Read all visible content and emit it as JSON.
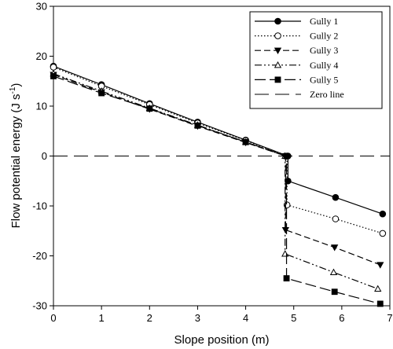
{
  "chart_data": {
    "type": "line",
    "xlabel": "Slope position (m)",
    "ylabel_main": "Flow potential energy (J s",
    "ylabel_sup": "-1",
    "ylabel_close": ")",
    "xlim": [
      0,
      7
    ],
    "ylim": [
      -30,
      30
    ],
    "xticks": [
      "0",
      "1",
      "2",
      "3",
      "4",
      "5",
      "6",
      "7"
    ],
    "yticks": [
      "-30",
      "-20",
      "-10",
      "0",
      "10",
      "20",
      "30"
    ],
    "grid": false,
    "legend_position": "top-right",
    "series": [
      {
        "name": "Gully 1",
        "marker": "filled-circle",
        "dash": "none",
        "x": [
          0,
          1,
          2,
          3,
          4,
          4.88,
          4.88,
          5.87,
          6.85
        ],
        "y": [
          18,
          14.3,
          10.5,
          6.8,
          3.2,
          0,
          -5,
          -8.3,
          -11.6
        ]
      },
      {
        "name": "Gully 2",
        "marker": "open-circle",
        "dash": "1.5,2.5",
        "x": [
          0,
          1,
          2,
          3,
          4,
          4.86,
          4.86,
          5.87,
          6.85
        ],
        "y": [
          17.8,
          14,
          10.3,
          6.6,
          3.1,
          0,
          -9.8,
          -12.6,
          -15.5
        ]
      },
      {
        "name": "Gully 3",
        "marker": "filled-triangle-down",
        "dash": "8,4",
        "x": [
          0,
          1,
          2,
          3,
          4,
          4.83,
          4.83,
          5.85,
          6.8
        ],
        "y": [
          16.3,
          12.8,
          9.4,
          6,
          2.7,
          0,
          -14.8,
          -18.3,
          -21.8
        ]
      },
      {
        "name": "Gully 4",
        "marker": "open-triangle-up",
        "dash": "9,3,2,3,2,3",
        "x": [
          0,
          1,
          2,
          3,
          4,
          4.82,
          4.82,
          5.83,
          6.75
        ],
        "y": [
          16.5,
          13,
          9.6,
          6.2,
          2.8,
          0,
          -19.6,
          -23.3,
          -26.6
        ]
      },
      {
        "name": "Gully 5",
        "marker": "filled-square",
        "dash": "14,5",
        "x": [
          0,
          1,
          2,
          3,
          4,
          4.85,
          4.85,
          5.85,
          6.8
        ],
        "y": [
          16,
          12.6,
          9.5,
          6.1,
          2.8,
          0,
          -24.5,
          -27.2,
          -29.6
        ]
      },
      {
        "name": "Zero line",
        "marker": "none",
        "dash": "18,8",
        "x": [
          0,
          7
        ],
        "y": [
          0,
          0
        ]
      }
    ]
  }
}
